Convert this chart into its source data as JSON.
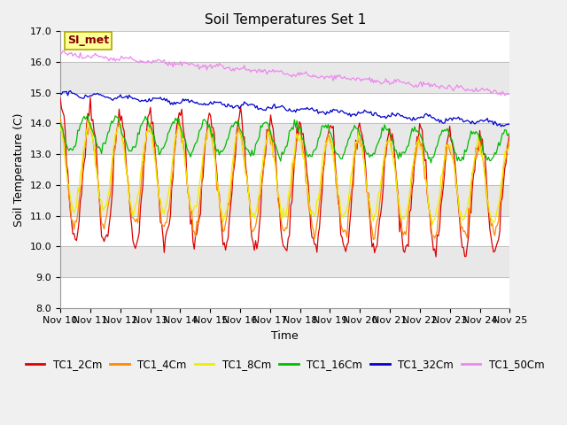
{
  "title": "Soil Temperatures Set 1",
  "xlabel": "Time",
  "ylabel": "Soil Temperature (C)",
  "ylim": [
    8.0,
    17.0
  ],
  "yticks": [
    8.0,
    9.0,
    10.0,
    11.0,
    12.0,
    13.0,
    14.0,
    15.0,
    16.0,
    17.0
  ],
  "n_days": 15,
  "start_day": 10,
  "xtick_labels": [
    "Nov 10",
    "Nov 11",
    "Nov 12",
    "Nov 13",
    "Nov 14",
    "Nov 15",
    "Nov 16",
    "Nov 17",
    "Nov 18",
    "Nov 19",
    "Nov 20",
    "Nov 21",
    "Nov 22",
    "Nov 23",
    "Nov 24",
    "Nov 25"
  ],
  "series_colors": {
    "TC1_2Cm": "#dd0000",
    "TC1_4Cm": "#ff8800",
    "TC1_8Cm": "#eeee00",
    "TC1_16Cm": "#00bb00",
    "TC1_32Cm": "#0000cc",
    "TC1_50Cm": "#ee88ee"
  },
  "legend_labels": [
    "TC1_2Cm",
    "TC1_4Cm",
    "TC1_8Cm",
    "TC1_16Cm",
    "TC1_32Cm",
    "TC1_50Cm"
  ],
  "annotation_text": "SI_met",
  "annotation_color": "#880000",
  "annotation_bg": "#ffff99",
  "annotation_edge": "#aaaa00",
  "bg_color": "#f0f0f0",
  "plot_bg": "#ffffff",
  "band_color": "#e8e8e8",
  "title_fontsize": 11,
  "axis_label_fontsize": 9,
  "tick_fontsize": 8
}
